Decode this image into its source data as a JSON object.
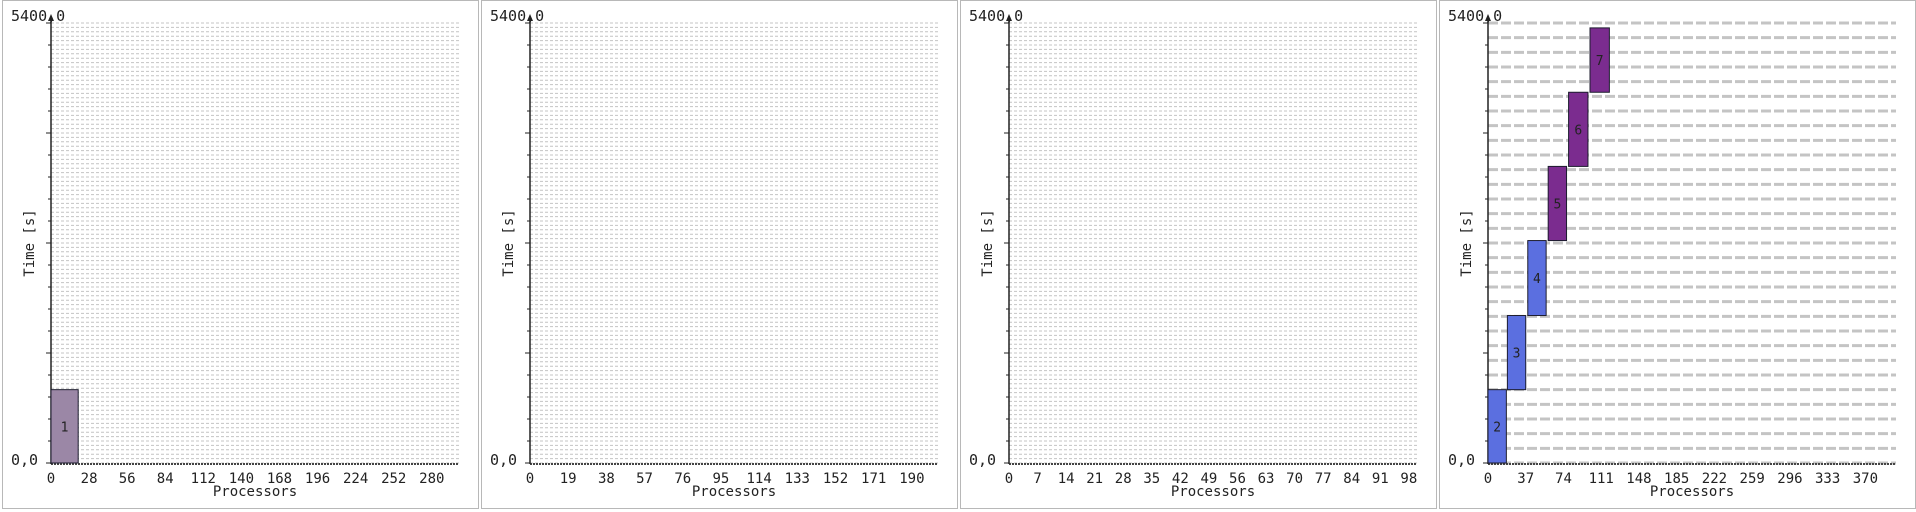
{
  "chart_data": [
    {
      "type": "bar",
      "ymax_label": "5400,0",
      "ymin_label": "0,0",
      "ylabel": "Time [s]",
      "xlabel": "Processors",
      "ylim": [
        0,
        5400
      ],
      "xlim": [
        0,
        300
      ],
      "x_ticks": [
        0,
        28,
        56,
        84,
        112,
        140,
        168,
        196,
        224,
        252,
        280
      ],
      "grid_rows": 100,
      "jobs": [
        {
          "id": "1",
          "proc_start": 0,
          "proc_end": 20,
          "t_start": 0,
          "t_end": 900,
          "color": "#9b87a6"
        }
      ]
    },
    {
      "type": "bar",
      "ymax_label": "5400,0",
      "ymin_label": "0,0",
      "ylabel": "Time [s]",
      "xlabel": "Processors",
      "ylim": [
        0,
        5400
      ],
      "xlim": [
        0,
        203
      ],
      "x_ticks": [
        0,
        19,
        38,
        57,
        76,
        95,
        114,
        133,
        152,
        171,
        190
      ],
      "grid_rows": 100,
      "jobs": []
    },
    {
      "type": "bar",
      "ymax_label": "5400,0",
      "ymin_label": "0,0",
      "ylabel": "Time [s]",
      "xlabel": "Processors",
      "ylim": [
        0,
        5400
      ],
      "xlim": [
        0,
        100
      ],
      "x_ticks": [
        0,
        7,
        14,
        21,
        28,
        35,
        42,
        49,
        56,
        63,
        70,
        77,
        84,
        91,
        98
      ],
      "grid_rows": 100,
      "jobs": []
    },
    {
      "type": "bar",
      "ymax_label": "5400,0",
      "ymin_label": "0,0",
      "ylabel": "Time [s]",
      "xlabel": "Processors",
      "ylim": [
        0,
        5400
      ],
      "xlim": [
        0,
        400
      ],
      "x_ticks": [
        0,
        37,
        74,
        111,
        148,
        185,
        222,
        259,
        296,
        333,
        370
      ],
      "grid_rows": 30,
      "jobs": [
        {
          "id": "2",
          "proc_start": 0,
          "proc_end": 18,
          "t_start": 0,
          "t_end": 900,
          "color": "#5b6fe0"
        },
        {
          "id": "3",
          "proc_start": 19,
          "proc_end": 37,
          "t_start": 900,
          "t_end": 1810,
          "color": "#5b6fe0"
        },
        {
          "id": "4",
          "proc_start": 39,
          "proc_end": 57,
          "t_start": 1810,
          "t_end": 2730,
          "color": "#5b6fe0"
        },
        {
          "id": "5",
          "proc_start": 59,
          "proc_end": 77,
          "t_start": 2730,
          "t_end": 3640,
          "color": "#7b2c8f"
        },
        {
          "id": "6",
          "proc_start": 79,
          "proc_end": 98,
          "t_start": 3640,
          "t_end": 4550,
          "color": "#7b2c8f"
        },
        {
          "id": "7",
          "proc_start": 100,
          "proc_end": 119,
          "t_start": 4550,
          "t_end": 5340,
          "color": "#7b2c8f"
        }
      ]
    }
  ]
}
